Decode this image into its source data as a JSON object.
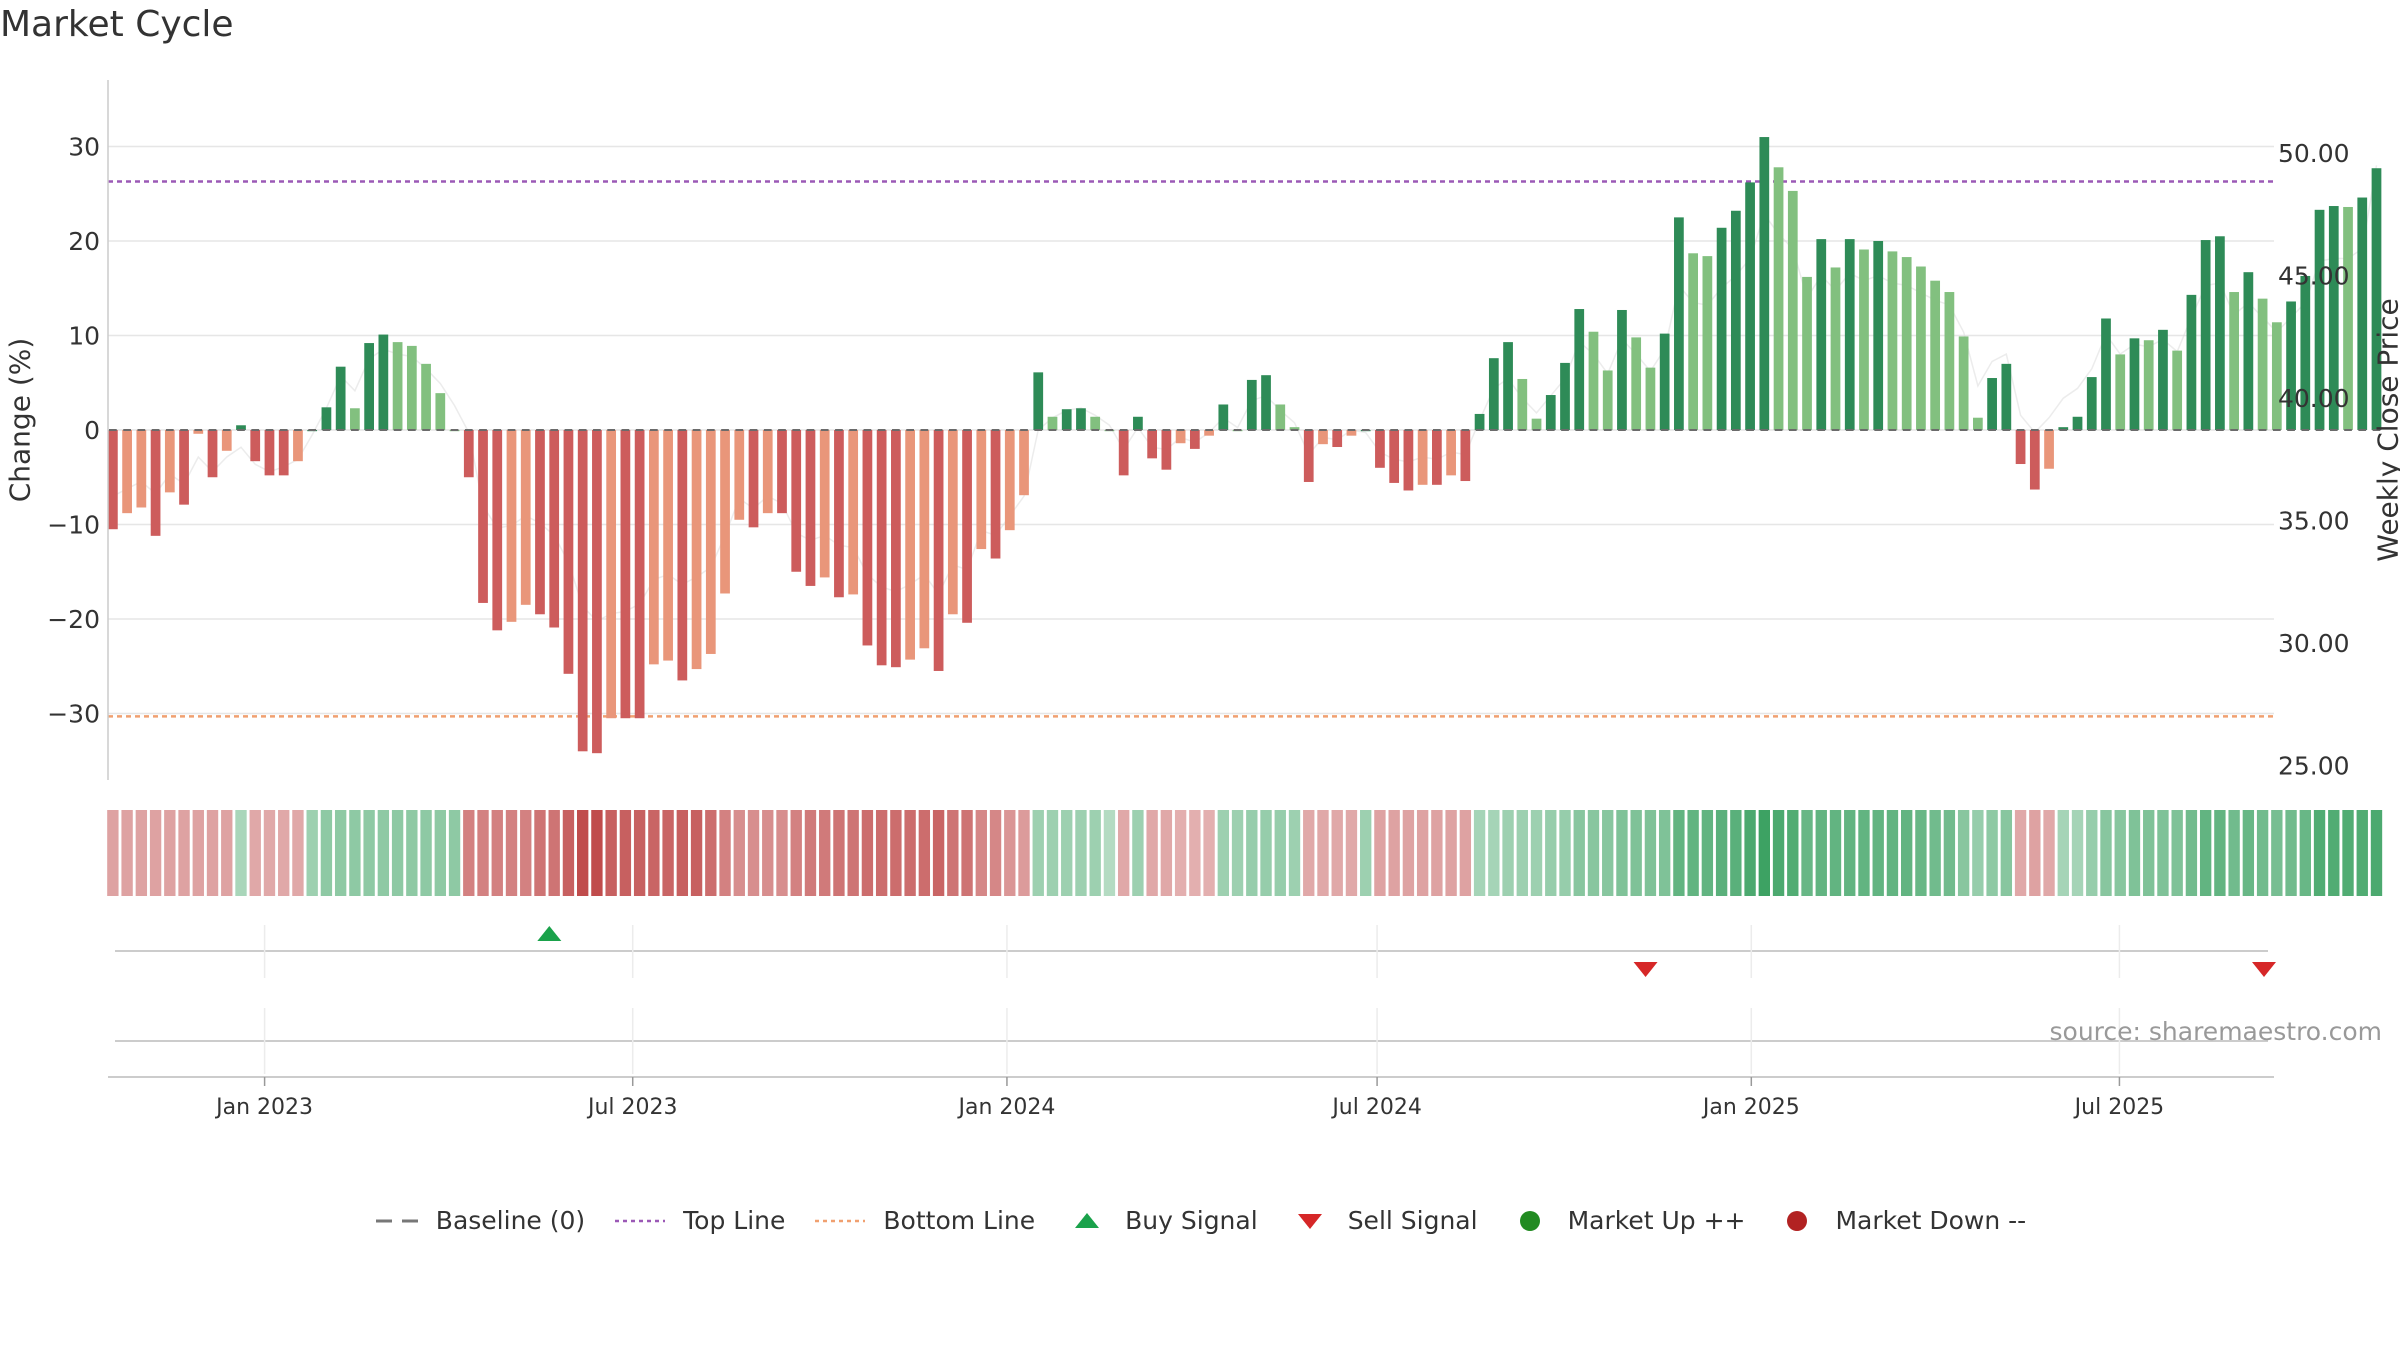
{
  "chart_data": {
    "type": "bar",
    "title": "Market Cycle",
    "ylabel": "Change (%)",
    "y2label": "Weekly Close Price",
    "ylim": [
      -37,
      37
    ],
    "y2lim": [
      24.4,
      55.0
    ],
    "yticks": [
      30,
      20,
      10,
      0,
      -10,
      -20,
      -30
    ],
    "ytick_labels": [
      "30",
      "20",
      "10",
      "0",
      "−10",
      "−20",
      "−30"
    ],
    "y2ticks": [
      50,
      45,
      40,
      35,
      30,
      25
    ],
    "y2tick_labels": [
      "50.00",
      "45.00",
      "40.00",
      "35.00",
      "30.00",
      "25.00"
    ],
    "top_line": 26.3,
    "bottom_line": -30.3,
    "x_start": "2022-10-16",
    "x_end": "2025-09-15",
    "xticks": [
      "2023-01-01",
      "2023-07-01",
      "2024-01-01",
      "2024-07-01",
      "2025-01-01",
      "2025-07-01"
    ],
    "xtick_labels": [
      "Jan 2023",
      "Jul 2023",
      "Jan 2024",
      "Jul 2024",
      "Jan 2025",
      "Jul 2025"
    ],
    "bar_start": "2022-10-16",
    "bar_interval_days": 7,
    "values": [
      -10.5,
      -8.8,
      -8.2,
      -11.2,
      -6.6,
      -7.9,
      -0.4,
      -5.0,
      -2.2,
      0.5,
      -3.3,
      -4.8,
      -4.8,
      -3.3,
      0.0,
      2.4,
      6.7,
      2.3,
      9.2,
      10.1,
      9.3,
      8.9,
      7.0,
      3.9,
      0.0,
      -5.0,
      -18.3,
      -21.2,
      -20.3,
      -18.5,
      -19.5,
      -20.9,
      -25.8,
      -34.0,
      -34.2,
      -30.5,
      -30.5,
      -30.5,
      -24.8,
      -24.4,
      -26.5,
      -25.3,
      -23.7,
      -17.3,
      -9.5,
      -10.3,
      -8.8,
      -8.8,
      -15.0,
      -16.5,
      -15.6,
      -17.7,
      -17.4,
      -22.8,
      -24.9,
      -25.1,
      -24.3,
      -23.1,
      -25.5,
      -19.5,
      -20.4,
      -12.6,
      -13.6,
      -10.6,
      -6.9,
      6.1,
      1.4,
      2.2,
      2.3,
      1.4,
      0.0,
      -4.8,
      1.4,
      -3.0,
      -4.2,
      -1.4,
      -2.0,
      -0.6,
      2.7,
      0.0,
      5.3,
      5.8,
      2.7,
      0.3,
      -5.5,
      -1.5,
      -1.8,
      -0.6,
      0.0,
      -4.0,
      -5.6,
      -6.4,
      -5.8,
      -5.8,
      -4.8,
      -5.4,
      1.7,
      7.6,
      9.3,
      5.4,
      1.2,
      3.7,
      7.1,
      12.8,
      10.4,
      6.3,
      12.7,
      9.8,
      6.6,
      10.2,
      22.5,
      18.7,
      18.4,
      21.4,
      23.2,
      26.2,
      31.0,
      27.8,
      25.3,
      16.2,
      20.2,
      17.2,
      20.2,
      19.1,
      20.0,
      18.9,
      18.3,
      17.3,
      15.8,
      14.6,
      9.9,
      1.3,
      5.5,
      7.0,
      -3.6,
      -6.3,
      -4.1,
      0.3,
      1.4,
      5.6,
      11.8,
      8.0,
      9.7,
      9.5,
      10.6,
      8.4,
      14.3,
      20.1,
      20.5,
      14.6,
      16.7,
      13.9,
      11.4,
      13.6,
      16.3,
      23.3,
      23.7,
      23.6,
      24.6,
      27.7
    ],
    "price": [
      36.0,
      36.3,
      36.6,
      36.1,
      36.9,
      36.5,
      37.6,
      37.0,
      37.6,
      38.0,
      37.3,
      37.0,
      37.2,
      37.5,
      38.5,
      39.6,
      40.9,
      40.3,
      41.6,
      42.0,
      41.8,
      41.7,
      41.2,
      40.6,
      39.7,
      38.6,
      35.6,
      34.7,
      34.8,
      35.2,
      34.9,
      34.4,
      33.3,
      31.5,
      30.9,
      31.2,
      31.3,
      31.6,
      32.6,
      32.8,
      32.4,
      32.7,
      33.1,
      34.4,
      35.9,
      35.5,
      36.0,
      35.7,
      34.5,
      34.2,
      34.4,
      34.0,
      33.9,
      32.8,
      32.3,
      32.1,
      32.4,
      32.8,
      32.0,
      33.2,
      33.0,
      34.6,
      34.4,
      35.2,
      36.0,
      38.7,
      39.2,
      39.5,
      39.6,
      39.3,
      38.9,
      37.9,
      38.8,
      38.0,
      37.9,
      38.4,
      38.2,
      38.6,
      39.2,
      38.8,
      39.9,
      40.1,
      39.5,
      39.0,
      37.7,
      38.4,
      38.3,
      38.7,
      38.6,
      37.8,
      37.5,
      37.4,
      37.6,
      37.5,
      37.8,
      37.7,
      39.1,
      40.4,
      40.8,
      40.0,
      39.4,
      40.1,
      40.8,
      42.3,
      41.8,
      41.0,
      42.4,
      41.8,
      41.1,
      42.0,
      44.6,
      43.9,
      43.8,
      44.5,
      45.0,
      45.7,
      47.5,
      46.7,
      46.1,
      44.1,
      45.0,
      44.4,
      45.1,
      44.8,
      45.0,
      44.7,
      44.6,
      44.3,
      44.0,
      43.8,
      42.7,
      40.5,
      41.5,
      41.8,
      39.3,
      38.6,
      39.2,
      40.0,
      40.4,
      41.2,
      42.6,
      41.8,
      42.2,
      42.1,
      42.4,
      41.9,
      43.3,
      44.6,
      44.7,
      43.4,
      43.9,
      43.3,
      42.7,
      43.3,
      43.9,
      45.6,
      45.7,
      45.7,
      46.1,
      49.5
    ],
    "heat_strength": [
      0.35,
      0.35,
      0.35,
      0.35,
      0.35,
      0.35,
      0.35,
      0.35,
      0.35,
      0.22,
      0.3,
      0.3,
      0.3,
      0.3,
      0.3,
      0.4,
      0.4,
      0.4,
      0.4,
      0.4,
      0.4,
      0.4,
      0.4,
      0.4,
      0.4,
      0.6,
      0.6,
      0.6,
      0.6,
      0.6,
      0.7,
      0.7,
      0.85,
      1.0,
      1.0,
      0.85,
      0.85,
      0.85,
      0.8,
      0.8,
      0.85,
      0.85,
      0.75,
      0.6,
      0.5,
      0.5,
      0.5,
      0.5,
      0.6,
      0.65,
      0.65,
      0.7,
      0.7,
      0.75,
      0.75,
      0.75,
      0.75,
      0.75,
      0.8,
      0.7,
      0.7,
      0.55,
      0.55,
      0.45,
      0.4,
      0.3,
      0.3,
      0.3,
      0.3,
      0.3,
      0.15,
      0.3,
      0.3,
      0.3,
      0.3,
      0.25,
      0.25,
      0.25,
      0.3,
      0.3,
      0.35,
      0.35,
      0.35,
      0.3,
      0.3,
      0.3,
      0.3,
      0.3,
      0.3,
      0.35,
      0.35,
      0.35,
      0.35,
      0.35,
      0.35,
      0.35,
      0.25,
      0.25,
      0.3,
      0.3,
      0.3,
      0.35,
      0.35,
      0.45,
      0.45,
      0.45,
      0.5,
      0.5,
      0.5,
      0.5,
      0.7,
      0.7,
      0.7,
      0.75,
      0.75,
      0.85,
      0.95,
      0.85,
      0.8,
      0.65,
      0.7,
      0.7,
      0.7,
      0.7,
      0.7,
      0.7,
      0.7,
      0.65,
      0.6,
      0.6,
      0.45,
      0.35,
      0.4,
      0.45,
      0.3,
      0.35,
      0.3,
      0.25,
      0.25,
      0.35,
      0.45,
      0.45,
      0.5,
      0.5,
      0.5,
      0.5,
      0.6,
      0.7,
      0.7,
      0.6,
      0.65,
      0.6,
      0.55,
      0.6,
      0.65,
      0.8,
      0.8,
      0.8,
      0.8,
      0.85
    ],
    "buy_signals": [
      "2023-05-21"
    ],
    "sell_signals": [
      "2024-11-10",
      "2025-09-14"
    ],
    "legend": [
      {
        "label": "Baseline (0)",
        "type": "dash",
        "color": "#777777"
      },
      {
        "label": "Top Line",
        "type": "dotted",
        "color": "#9b59b6"
      },
      {
        "label": "Bottom Line",
        "type": "dotted",
        "color": "#f0a070"
      },
      {
        "label": "Buy Signal",
        "type": "triangle-up",
        "color": "#1aa24b"
      },
      {
        "label": "Sell Signal",
        "type": "triangle-down",
        "color": "#d62728"
      },
      {
        "label": "Market Up ++",
        "type": "circle",
        "color": "#228b22"
      },
      {
        "label": "Market Down --",
        "type": "circle",
        "color": "#b22222"
      }
    ],
    "legend_position": "bottom-center",
    "grid": true
  },
  "source": "source: sharemaestro.com"
}
